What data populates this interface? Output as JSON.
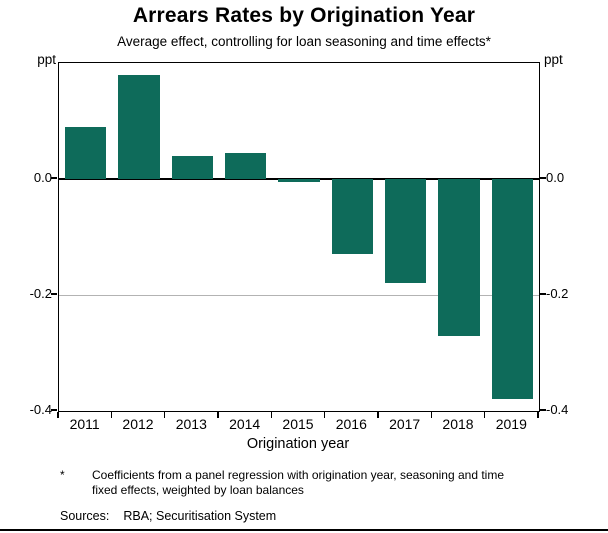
{
  "title": "Arrears Rates by Origination Year",
  "subtitle": "Average effect, controlling for loan seasoning and time effects*",
  "unit_left": "ppt",
  "unit_right": "ppt",
  "x_axis_title": "Origination year",
  "footnote": {
    "marker": "*",
    "text": "Coefficients from a panel regression with origination year, seasoning and time fixed effects, weighted by loan balances"
  },
  "sources": {
    "label": "Sources:",
    "text": "RBA; Securitisation System"
  },
  "chart_data": {
    "type": "bar",
    "categories": [
      "2011",
      "2012",
      "2013",
      "2014",
      "2015",
      "2016",
      "2017",
      "2018",
      "2019"
    ],
    "values": [
      0.09,
      0.18,
      0.04,
      0.045,
      -0.005,
      -0.13,
      -0.18,
      -0.27,
      -0.38
    ],
    "title": "Arrears Rates by Origination Year",
    "xlabel": "Origination year",
    "ylabel": "ppt",
    "ylim": [
      -0.4,
      0.2
    ],
    "yticks": [
      0.0,
      -0.2,
      -0.4
    ],
    "ytick_labels": [
      "0.0",
      "-0.2",
      "-0.4"
    ],
    "bar_color": "#0e6b5a",
    "grid": true,
    "gridline_color": "#b3b3b3",
    "legend_position": "none"
  }
}
